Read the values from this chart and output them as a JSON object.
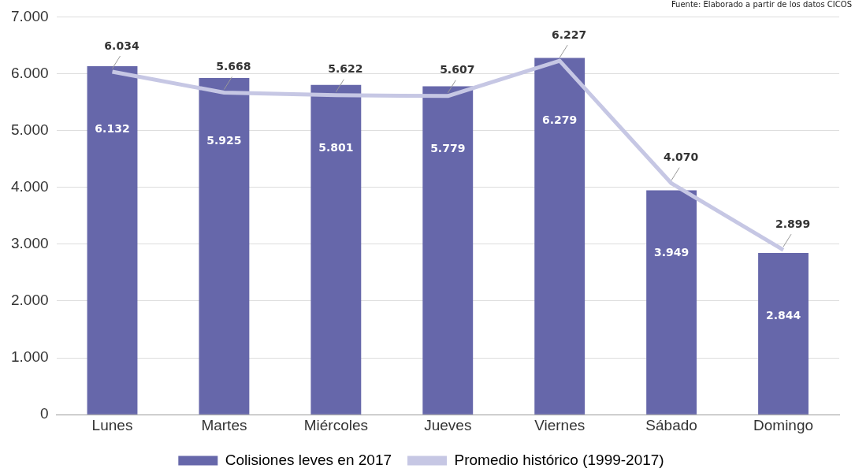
{
  "chart_data": {
    "type": "bar",
    "categories": [
      "Lunes",
      "Martes",
      "Miércoles",
      "Jueves",
      "Viernes",
      "Sábado",
      "Domingo"
    ],
    "series": [
      {
        "name": "Colisiones leves en 2017",
        "color": "#6667aa",
        "values": [
          6132,
          5925,
          5801,
          5779,
          6279,
          3949,
          2844
        ],
        "value_labels": [
          "6.132",
          "5.925",
          "5.801",
          "5.779",
          "6.279",
          "3.949",
          "2.844"
        ]
      },
      {
        "name": "Promedio histórico (1999-2017)",
        "type": "line",
        "color": "#c6c7e4",
        "values": [
          6034,
          5668,
          5622,
          5607,
          6227,
          4070,
          2899
        ],
        "value_labels": [
          "6.034",
          "5.668",
          "5.622",
          "5.607",
          "6.227",
          "4.070",
          "2.899"
        ]
      }
    ],
    "ylim": [
      0,
      7000
    ],
    "yticks": [
      {
        "value": 0,
        "label": "0"
      },
      {
        "value": 1000,
        "label": "1.000"
      },
      {
        "value": 2000,
        "label": "2.000"
      },
      {
        "value": 3000,
        "label": "3.000"
      },
      {
        "value": 4000,
        "label": "4.000"
      },
      {
        "value": 5000,
        "label": "5.000"
      },
      {
        "value": 6000,
        "label": "6.000"
      },
      {
        "value": 7000,
        "label": "7.000"
      }
    ],
    "grid": "y",
    "legend": "bottom",
    "marker": "none",
    "annotations": [
      "Fuente: Elaborado a partir de los datos CICOS"
    ]
  }
}
